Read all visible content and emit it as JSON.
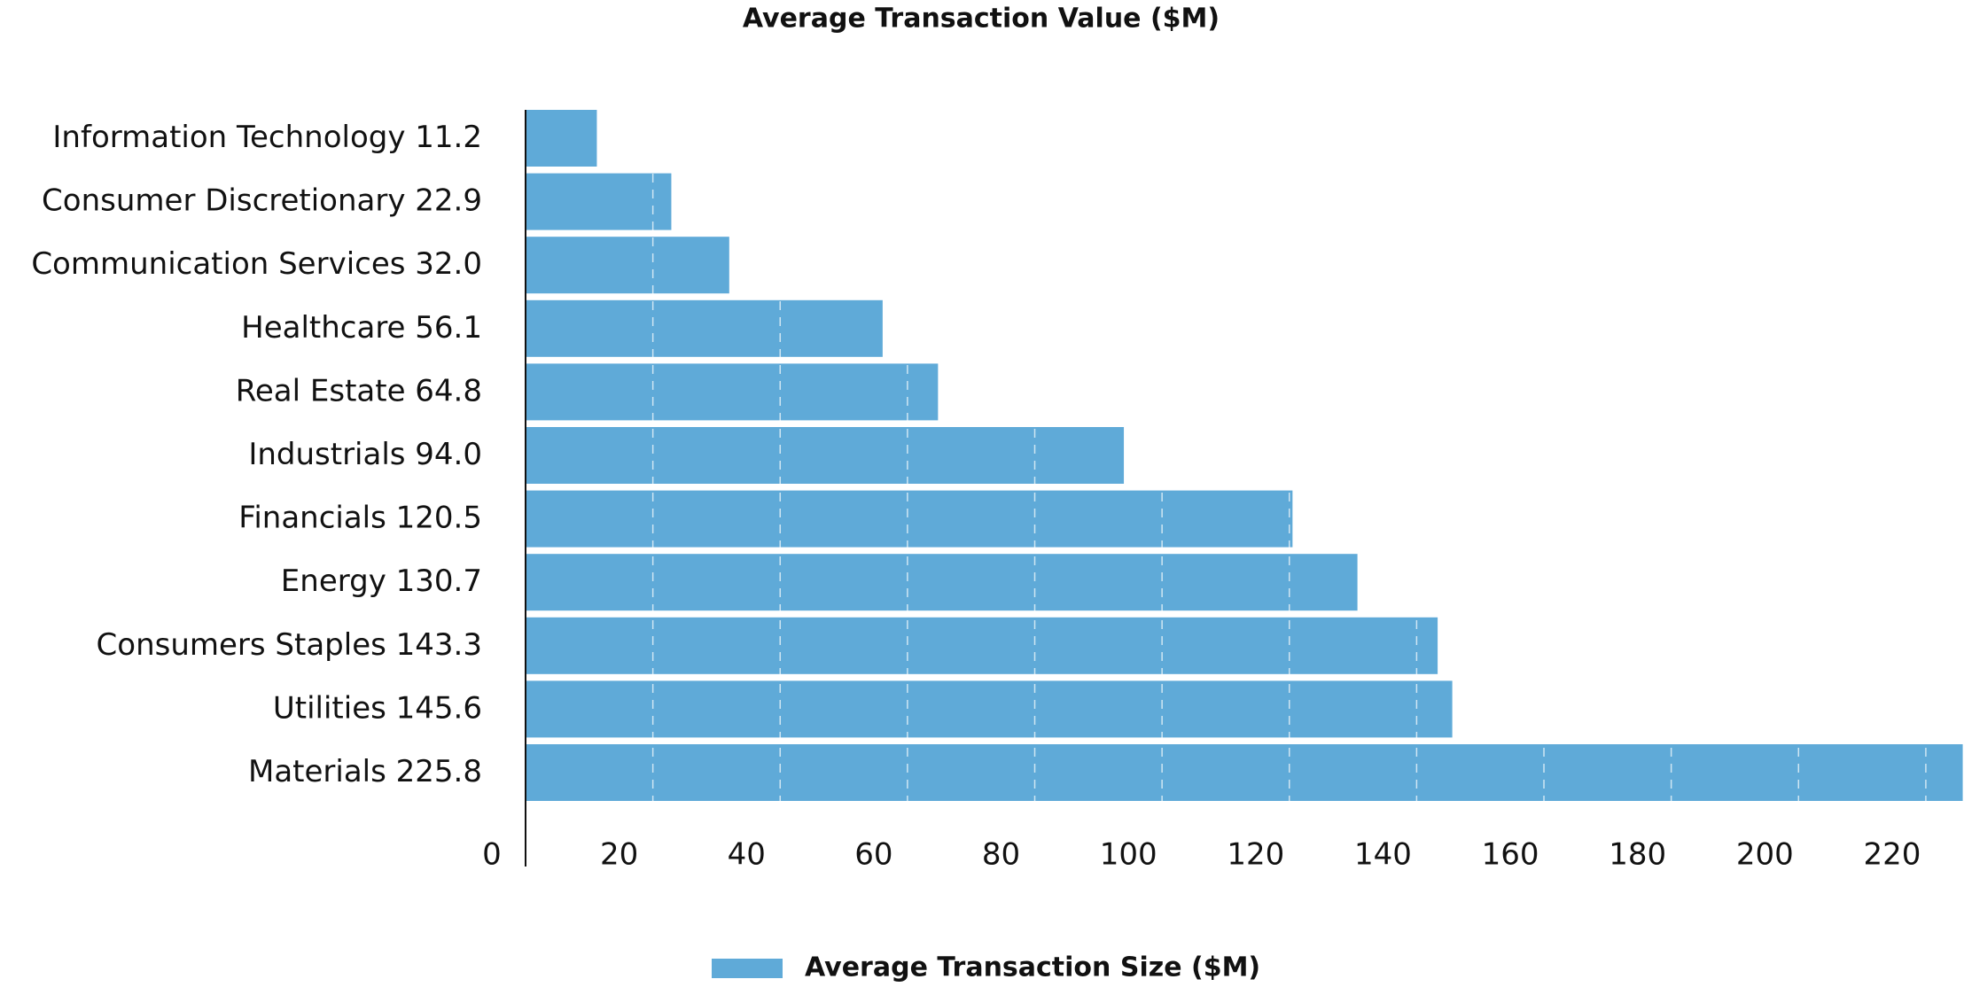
{
  "chart_data": {
    "type": "barh",
    "title": "Average Transaction Value ($M)",
    "categories": [
      "Information Technology",
      "Consumer Discretionary",
      "Communication Services",
      "Healthcare",
      "Real Estate",
      "Industrials",
      "Financials",
      "Energy",
      "Consumers Staples",
      "Utilities",
      "Materials"
    ],
    "series": [
      {
        "name": "Average Transaction Size ($M)",
        "color": "#5faad8",
        "values": [
          11.2,
          22.9,
          32.0,
          56.1,
          64.8,
          94.0,
          120.5,
          130.7,
          143.3,
          145.6,
          225.8
        ],
        "value_labels": [
          "11.2",
          "22.9",
          "32.0",
          "56.1",
          "64.8",
          "94.0",
          "120.5",
          "130.7",
          "143.3",
          "145.6",
          "225.8"
        ]
      }
    ],
    "xlim": [
      0,
      226
    ],
    "xticks": [
      0,
      20,
      40,
      60,
      80,
      100,
      120,
      140,
      160,
      180,
      200,
      220
    ],
    "grid": true
  }
}
